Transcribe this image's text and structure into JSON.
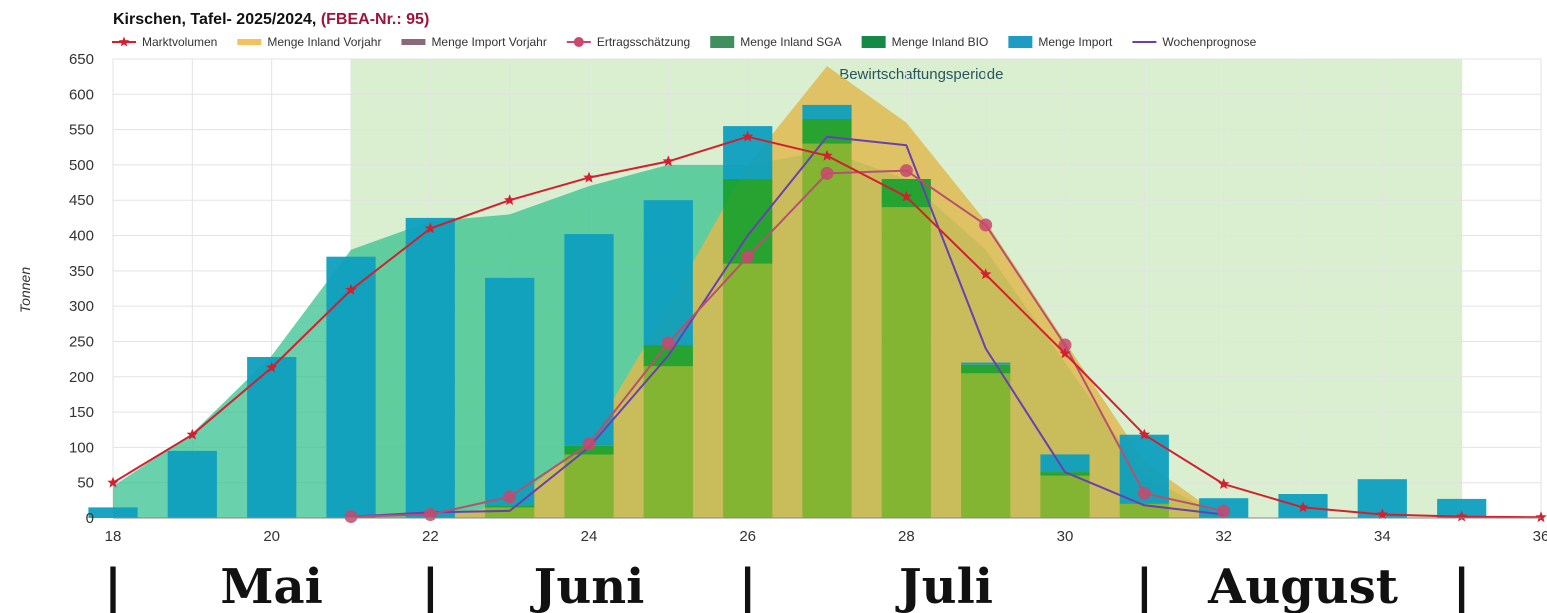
{
  "chart_data": {
    "type": "bar",
    "title_main": "Kirschen, Tafel- 2025/2024, ",
    "title_accent": "(FBEA-Nr.: 95)",
    "ylabel": "Tonnen",
    "xlim": [
      18,
      36
    ],
    "ylim": [
      0,
      650
    ],
    "x_ticks": [
      18,
      20,
      22,
      24,
      26,
      28,
      30,
      32,
      34,
      36
    ],
    "y_ticks": [
      0,
      50,
      100,
      150,
      200,
      250,
      300,
      350,
      400,
      450,
      500,
      550,
      600,
      650
    ],
    "grid": true,
    "legend_position": "top",
    "legend": [
      {
        "label": "Marktvolumen",
        "color": "#d22030",
        "kind": "star-line"
      },
      {
        "label": "Menge Inland Vorjahr",
        "color": "#f5c060",
        "kind": "band"
      },
      {
        "label": "Menge Import Vorjahr",
        "color": "#8a6a7a",
        "kind": "band"
      },
      {
        "label": "Ertragsschätzung",
        "color": "#c8486e",
        "kind": "dot-line"
      },
      {
        "label": "Menge Inland SGA",
        "color": "#3f8f5f",
        "kind": "box"
      },
      {
        "label": "Menge Inland BIO",
        "color": "#148a46",
        "kind": "box"
      },
      {
        "label": "Menge Import",
        "color": "#1f9cc4",
        "kind": "box"
      },
      {
        "label": "Wochenprognose",
        "color": "#6a3fb0",
        "kind": "line"
      }
    ],
    "period": {
      "label": "Bewirtschaftungsperiode",
      "from": 21,
      "to": 35
    },
    "area_inland_vorjahr": {
      "x": [
        22,
        23,
        24,
        25,
        26,
        27,
        28,
        29,
        30,
        31,
        32
      ],
      "y": [
        0,
        20,
        110,
        300,
        500,
        640,
        560,
        420,
        250,
        80,
        0
      ]
    },
    "area_import_vorjahr": {
      "x": [
        18,
        19,
        20,
        21,
        22,
        23,
        24,
        25,
        26,
        27,
        28,
        29,
        30,
        31,
        32
      ],
      "y": [
        45,
        120,
        230,
        380,
        420,
        430,
        470,
        500,
        500,
        520,
        480,
        380,
        220,
        60,
        0
      ]
    },
    "bars": {
      "x": [
        18,
        19,
        20,
        21,
        22,
        23,
        24,
        25,
        26,
        27,
        28,
        29,
        30,
        31,
        32,
        33,
        34,
        35
      ],
      "inland_sga": [
        0,
        0,
        0,
        0,
        0,
        15,
        90,
        215,
        360,
        530,
        440,
        205,
        60,
        20,
        0,
        0,
        0,
        0
      ],
      "inland_bio": [
        0,
        0,
        0,
        0,
        0,
        3,
        12,
        30,
        120,
        35,
        40,
        12,
        5,
        0,
        0,
        0,
        0,
        0
      ],
      "import": [
        15,
        95,
        228,
        370,
        425,
        322,
        300,
        205,
        75,
        20,
        0,
        3,
        25,
        98,
        28,
        34,
        55,
        27
      ]
    },
    "marktvolumen": {
      "x": [
        18,
        19,
        20,
        21,
        22,
        23,
        24,
        25,
        26,
        27,
        28,
        29,
        30,
        31,
        32,
        33,
        34,
        35,
        36
      ],
      "y": [
        50,
        118,
        213,
        323,
        410,
        450,
        482,
        505,
        540,
        513,
        455,
        345,
        233,
        118,
        48,
        15,
        5,
        2,
        1
      ]
    },
    "ertragsschaetzung": {
      "x": [
        21,
        22,
        23,
        24,
        25,
        26,
        27,
        28,
        29,
        30,
        31,
        32
      ],
      "y": [
        2,
        5,
        30,
        105,
        248,
        370,
        488,
        492,
        415,
        245,
        35,
        10
      ]
    },
    "wochenprognose": {
      "x": [
        21,
        22,
        23,
        24,
        25,
        26,
        27,
        28,
        29,
        30,
        31,
        32
      ],
      "y": [
        2,
        8,
        10,
        100,
        230,
        400,
        540,
        528,
        240,
        65,
        18,
        5
      ]
    }
  },
  "months": [
    "Mai",
    "Juni",
    "Juli",
    "August"
  ],
  "month_separator": "|"
}
